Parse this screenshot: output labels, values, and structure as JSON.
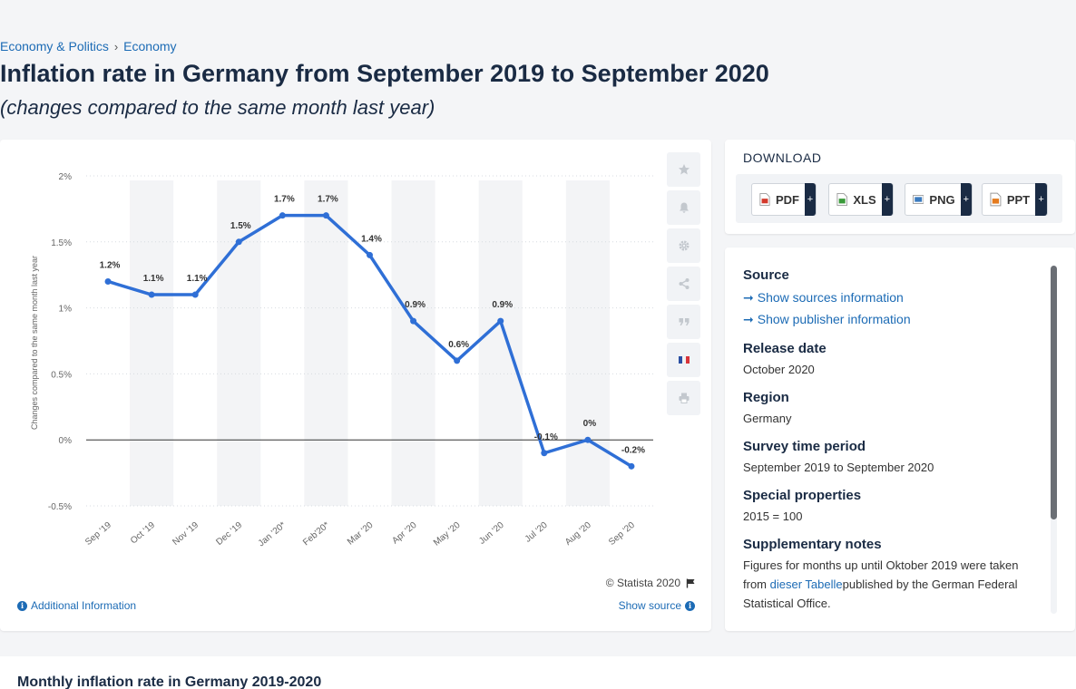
{
  "breadcrumb": {
    "item1": "Economy & Politics",
    "separator": "›",
    "item2": "Economy"
  },
  "page_title": "Inflation rate in Germany from September 2019 to September 2020",
  "page_subtitle": "(changes compared to the same month last year)",
  "chart_data": {
    "type": "line",
    "categories": [
      "Sep '19",
      "Oct '19",
      "Nov '19",
      "Dec '19",
      "Jan '20*",
      "Feb'20*",
      "Mar '20",
      "Apr '20",
      "May '20",
      "Jun '20",
      "Jul '20",
      "Aug '20",
      "Sep '20"
    ],
    "values": [
      1.2,
      1.1,
      1.1,
      1.5,
      1.7,
      1.7,
      1.4,
      0.9,
      0.6,
      0.9,
      -0.1,
      0,
      -0.2
    ],
    "data_labels": [
      "1.2%",
      "1.1%",
      "1.1%",
      "1.5%",
      "1.7%",
      "1.7%",
      "1.4%",
      "0.9%",
      "0.6%",
      "0.9%",
      "-0.1%",
      "0%",
      "-0.2%"
    ],
    "ylabel": "Changes compared to the same month last year",
    "yticks": [
      2,
      1.5,
      1,
      0.5,
      0,
      -0.5
    ],
    "ytick_labels": [
      "2%",
      "1.5%",
      "1%",
      "0.5%",
      "0%",
      "-0.5%"
    ],
    "ylim": [
      -0.5,
      2
    ],
    "grid": "horizontal dotted, alternating column bands",
    "line_color": "#2f6fd6"
  },
  "toolbar": {
    "items": [
      "star-icon",
      "bell-icon",
      "gear-icon",
      "share-icon",
      "quote-icon",
      "flag-fr-icon",
      "print-icon"
    ]
  },
  "chart_footer": {
    "copyright": "© Statista 2020",
    "additional_info": "Additional Information",
    "show_source": "Show source"
  },
  "download": {
    "title": "DOWNLOAD",
    "buttons": [
      {
        "label": "PDF",
        "plus": "+",
        "color": "#d33a2c"
      },
      {
        "label": "XLS",
        "plus": "+",
        "color": "#3a9a3a"
      },
      {
        "label": "PNG",
        "plus": "+",
        "color": "#3b7bbf"
      },
      {
        "label": "PPT",
        "plus": "+",
        "color": "#e47b1e"
      }
    ]
  },
  "info": {
    "source_h": "Source",
    "show_sources": "Show sources information",
    "show_publisher": "Show publisher information",
    "release_h": "Release date",
    "release_v": "October 2020",
    "region_h": "Region",
    "region_v": "Germany",
    "survey_h": "Survey time period",
    "survey_v": "September 2019 to September 2020",
    "special_h": "Special properties",
    "special_v": "2015 = 100",
    "supp_h": "Supplementary notes",
    "supp_v1": "Figures for months up until Oktober 2019 were taken from ",
    "supp_link": "dieser Tabelle",
    "supp_v2": "published by the German Federal Statistical Office."
  },
  "bottom_title": "Monthly inflation rate in Germany 2019-2020"
}
